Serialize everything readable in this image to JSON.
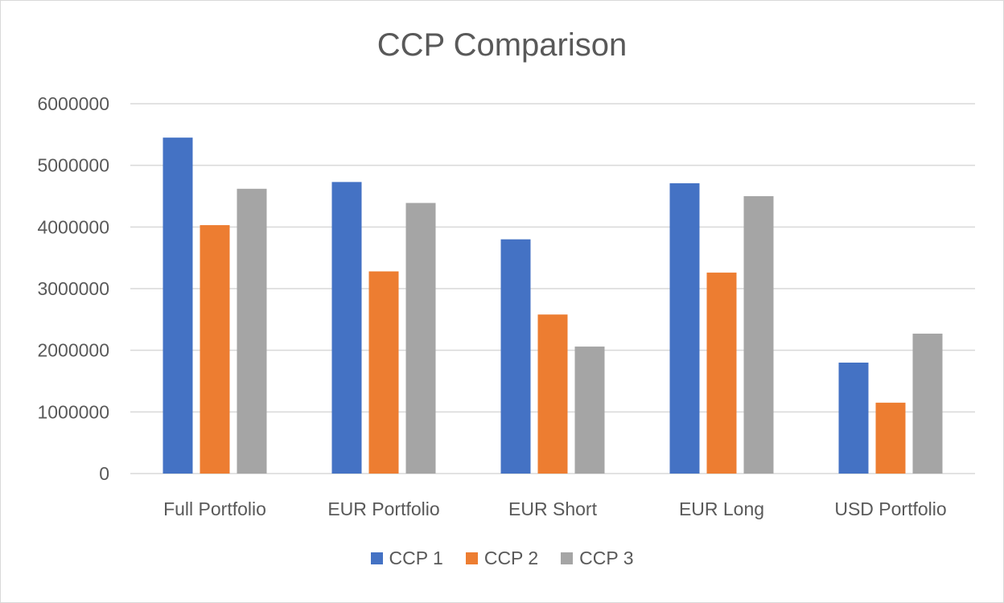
{
  "chart_data": {
    "type": "bar",
    "title": "CCP Comparison",
    "xlabel": "",
    "ylabel": "",
    "categories": [
      "Full Portfolio",
      "EUR Portfolio",
      "EUR Short",
      "EUR Long",
      "USD Portfolio"
    ],
    "series": [
      {
        "name": "CCP 1",
        "color": "#4472c4",
        "values": [
          5450000,
          4730000,
          3800000,
          4710000,
          1800000
        ]
      },
      {
        "name": "CCP 2",
        "color": "#ed7d31",
        "values": [
          4030000,
          3280000,
          2580000,
          3260000,
          1150000
        ]
      },
      {
        "name": "CCP 3",
        "color": "#a5a5a5",
        "values": [
          4620000,
          4390000,
          2060000,
          4500000,
          2270000
        ]
      }
    ],
    "ylim": [
      0,
      6000000
    ],
    "yticks": [
      "0",
      "1000000",
      "2000000",
      "3000000",
      "4000000",
      "5000000",
      "6000000"
    ],
    "grid": true,
    "legend_position": "bottom"
  }
}
